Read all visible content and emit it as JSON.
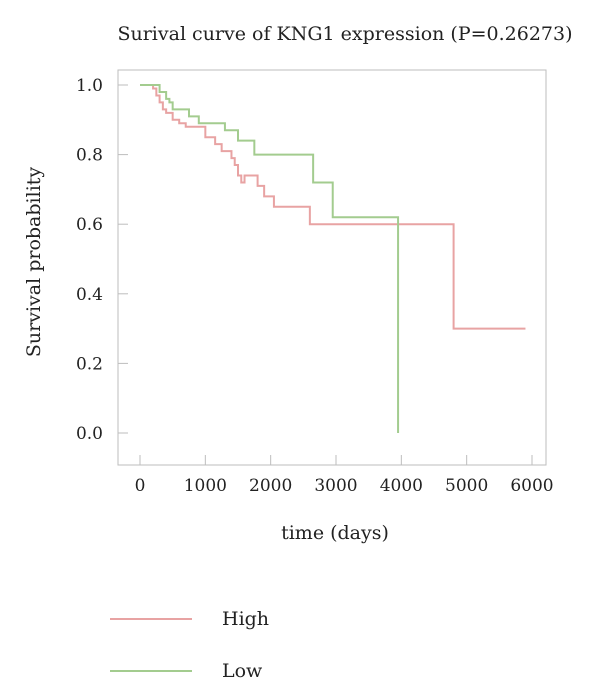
{
  "chart_data": {
    "type": "line",
    "title": "Surival curve of KNG1 expression (P=0.26273)",
    "xlabel": "time (days)",
    "ylabel": "Survival probability",
    "xlim": [
      0,
      6000
    ],
    "ylim": [
      0,
      1.0
    ],
    "x_ticks": [
      0,
      1000,
      2000,
      3000,
      4000,
      5000,
      6000
    ],
    "y_ticks": [
      0.0,
      0.2,
      0.4,
      0.6,
      0.8,
      1.0
    ],
    "x_tick_labels": [
      "0",
      "1000",
      "2000",
      "3000",
      "4000",
      "5000",
      "6000"
    ],
    "y_tick_labels": [
      "0.0",
      "0.2",
      "0.4",
      "0.6",
      "0.8",
      "1.0"
    ],
    "grid": false,
    "legend_position": "bottom-left",
    "step": true,
    "series": [
      {
        "name": "High",
        "color": "#e8a3a3",
        "x": [
          0,
          200,
          250,
          300,
          350,
          400,
          500,
          600,
          700,
          1000,
          1150,
          1250,
          1400,
          1450,
          1500,
          1550,
          1600,
          1800,
          1900,
          2000,
          2050,
          2600,
          4800,
          5900
        ],
        "y": [
          1.0,
          0.99,
          0.97,
          0.95,
          0.93,
          0.92,
          0.9,
          0.89,
          0.88,
          0.85,
          0.83,
          0.81,
          0.79,
          0.77,
          0.74,
          0.72,
          0.74,
          0.71,
          0.68,
          0.68,
          0.65,
          0.6,
          0.3,
          0.3
        ]
      },
      {
        "name": "Low",
        "color": "#a3cc8f",
        "x": [
          0,
          300,
          400,
          450,
          500,
          750,
          900,
          1300,
          1500,
          1750,
          2650,
          2950,
          3950
        ],
        "y": [
          1.0,
          0.98,
          0.96,
          0.95,
          0.93,
          0.91,
          0.89,
          0.87,
          0.84,
          0.8,
          0.72,
          0.62,
          0.0
        ]
      }
    ]
  }
}
